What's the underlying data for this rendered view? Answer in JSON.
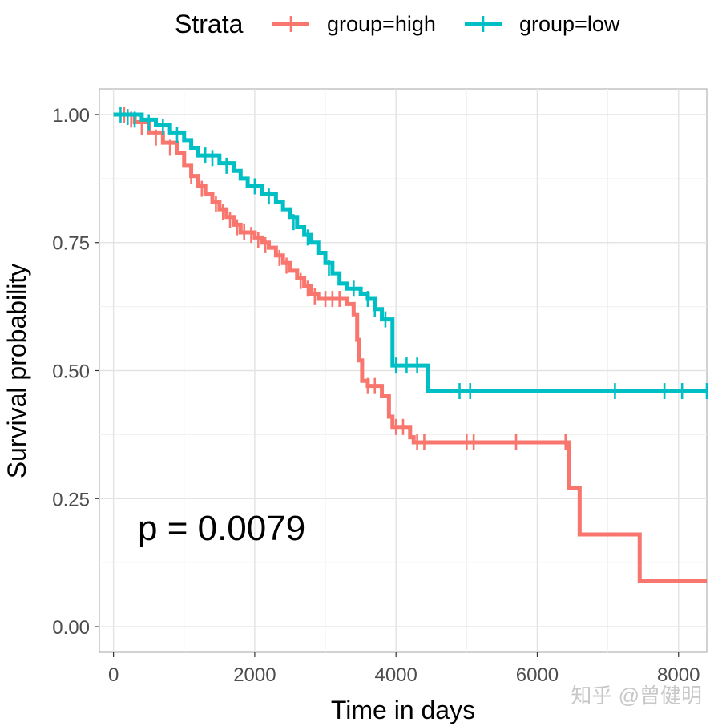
{
  "chart_data": {
    "type": "line",
    "xlabel": "Time in days",
    "ylabel": "Survival probability",
    "xlim": [
      -200,
      8400
    ],
    "ylim": [
      -0.05,
      1.05
    ],
    "x_ticks": [
      0,
      2000,
      4000,
      6000,
      8000
    ],
    "x_tick_labels": [
      "0",
      "2000",
      "4000",
      "6000",
      "8000"
    ],
    "y_ticks": [
      0,
      0.25,
      0.5,
      0.75,
      1.0
    ],
    "y_tick_labels": [
      "0.00",
      "0.25",
      "0.50",
      "0.75",
      "1.00"
    ],
    "grid": true,
    "legend": {
      "title": "Strata",
      "position": "top"
    },
    "annotation": "p = 0.0079",
    "series": [
      {
        "name": "group=high",
        "color": "#F8766D",
        "steps": [
          [
            0,
            1.0
          ],
          [
            300,
            0.985
          ],
          [
            500,
            0.965
          ],
          [
            700,
            0.945
          ],
          [
            900,
            0.925
          ],
          [
            1000,
            0.9
          ],
          [
            1100,
            0.88
          ],
          [
            1200,
            0.86
          ],
          [
            1300,
            0.845
          ],
          [
            1400,
            0.83
          ],
          [
            1500,
            0.815
          ],
          [
            1600,
            0.8
          ],
          [
            1700,
            0.785
          ],
          [
            1800,
            0.77
          ],
          [
            2000,
            0.76
          ],
          [
            2100,
            0.75
          ],
          [
            2200,
            0.74
          ],
          [
            2300,
            0.725
          ],
          [
            2400,
            0.71
          ],
          [
            2500,
            0.695
          ],
          [
            2600,
            0.68
          ],
          [
            2700,
            0.665
          ],
          [
            2800,
            0.65
          ],
          [
            2900,
            0.64
          ],
          [
            3300,
            0.63
          ],
          [
            3400,
            0.61
          ],
          [
            3450,
            0.56
          ],
          [
            3480,
            0.52
          ],
          [
            3520,
            0.48
          ],
          [
            3600,
            0.47
          ],
          [
            3800,
            0.45
          ],
          [
            3900,
            0.41
          ],
          [
            3950,
            0.39
          ],
          [
            4100,
            0.39
          ],
          [
            4200,
            0.37
          ],
          [
            4250,
            0.36
          ],
          [
            6450,
            0.27
          ],
          [
            6600,
            0.18
          ],
          [
            7450,
            0.09
          ],
          [
            8400,
            0.09
          ]
        ],
        "censored": [
          [
            150,
            1.0
          ],
          [
            250,
            0.99
          ],
          [
            400,
            0.975
          ],
          [
            600,
            0.955
          ],
          [
            800,
            0.935
          ],
          [
            1100,
            0.88
          ],
          [
            1250,
            0.855
          ],
          [
            1450,
            0.825
          ],
          [
            1550,
            0.81
          ],
          [
            1650,
            0.795
          ],
          [
            1750,
            0.78
          ],
          [
            1850,
            0.77
          ],
          [
            1950,
            0.765
          ],
          [
            2050,
            0.755
          ],
          [
            2150,
            0.745
          ],
          [
            2350,
            0.72
          ],
          [
            2450,
            0.705
          ],
          [
            2650,
            0.675
          ],
          [
            2750,
            0.66
          ],
          [
            2850,
            0.645
          ],
          [
            3000,
            0.64
          ],
          [
            3100,
            0.64
          ],
          [
            3200,
            0.64
          ],
          [
            3600,
            0.47
          ],
          [
            3700,
            0.47
          ],
          [
            4000,
            0.39
          ],
          [
            4100,
            0.39
          ],
          [
            4300,
            0.36
          ],
          [
            4400,
            0.36
          ],
          [
            5000,
            0.36
          ],
          [
            5100,
            0.36
          ],
          [
            5700,
            0.36
          ],
          [
            6400,
            0.36
          ]
        ]
      },
      {
        "name": "group=low",
        "color": "#00BFC4",
        "steps": [
          [
            0,
            1.0
          ],
          [
            400,
            0.99
          ],
          [
            600,
            0.98
          ],
          [
            800,
            0.965
          ],
          [
            1000,
            0.95
          ],
          [
            1100,
            0.935
          ],
          [
            1200,
            0.92
          ],
          [
            1500,
            0.905
          ],
          [
            1700,
            0.89
          ],
          [
            1800,
            0.875
          ],
          [
            1900,
            0.86
          ],
          [
            2100,
            0.845
          ],
          [
            2300,
            0.83
          ],
          [
            2400,
            0.815
          ],
          [
            2500,
            0.8
          ],
          [
            2600,
            0.78
          ],
          [
            2700,
            0.765
          ],
          [
            2800,
            0.75
          ],
          [
            2900,
            0.73
          ],
          [
            3000,
            0.71
          ],
          [
            3100,
            0.69
          ],
          [
            3200,
            0.67
          ],
          [
            3300,
            0.66
          ],
          [
            3500,
            0.65
          ],
          [
            3600,
            0.64
          ],
          [
            3700,
            0.62
          ],
          [
            3800,
            0.6
          ],
          [
            3950,
            0.51
          ],
          [
            4450,
            0.46
          ],
          [
            8400,
            0.46
          ]
        ],
        "censored": [
          [
            100,
            1.0
          ],
          [
            200,
            0.995
          ],
          [
            300,
            0.99
          ],
          [
            500,
            0.985
          ],
          [
            700,
            0.975
          ],
          [
            900,
            0.96
          ],
          [
            1300,
            0.92
          ],
          [
            1400,
            0.915
          ],
          [
            1600,
            0.9
          ],
          [
            2000,
            0.86
          ],
          [
            2200,
            0.84
          ],
          [
            2550,
            0.79
          ],
          [
            2750,
            0.76
          ],
          [
            3050,
            0.7
          ],
          [
            3400,
            0.66
          ],
          [
            3600,
            0.64
          ],
          [
            3700,
            0.62
          ],
          [
            3850,
            0.6
          ],
          [
            4000,
            0.51
          ],
          [
            4150,
            0.51
          ],
          [
            4300,
            0.51
          ],
          [
            4900,
            0.46
          ],
          [
            5050,
            0.46
          ],
          [
            7100,
            0.46
          ],
          [
            7800,
            0.46
          ],
          [
            8050,
            0.46
          ],
          [
            8400,
            0.46
          ]
        ]
      }
    ]
  },
  "watermark": "知乎 @曾健明"
}
